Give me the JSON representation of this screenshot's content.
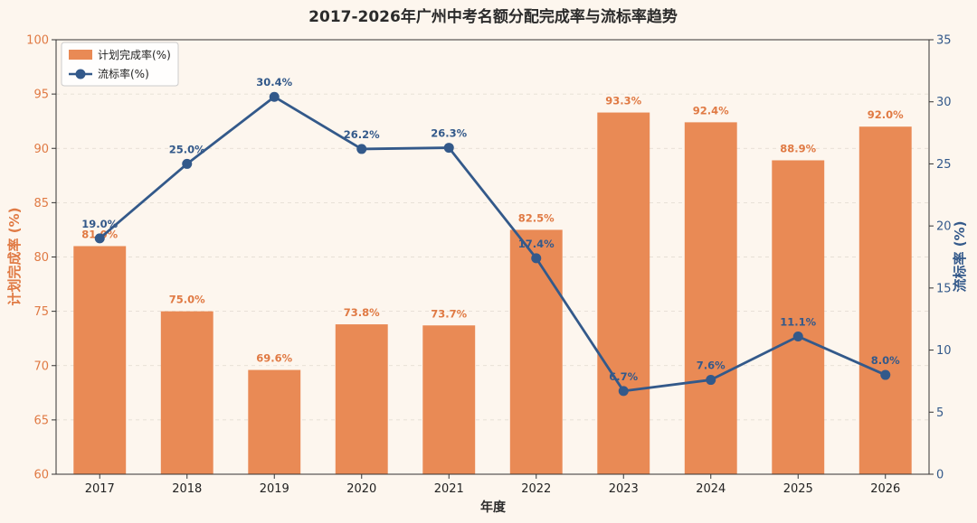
{
  "chart_data": {
    "type": "bar+line",
    "title": "2017-2026年广州中考名额分配完成率与流标率趋势",
    "xlabel": "年度",
    "ylabel_left": "计划完成率 (%)",
    "ylabel_right": "流标率 (%)",
    "categories": [
      "2017",
      "2018",
      "2019",
      "2020",
      "2021",
      "2022",
      "2023",
      "2024",
      "2025",
      "2026"
    ],
    "ylim_left": [
      60,
      100
    ],
    "yticks_left": [
      "60",
      "65",
      "70",
      "75",
      "80",
      "85",
      "90",
      "95",
      "100"
    ],
    "ylim_right": [
      0,
      35
    ],
    "yticks_right": [
      "0",
      "5",
      "10",
      "15",
      "20",
      "25",
      "30",
      "35"
    ],
    "grid": "horizontal dashed",
    "legend_position": "top-left",
    "series": [
      {
        "name": "计划完成率(%)",
        "kind": "bar",
        "axis": "left",
        "color": "#e98a55",
        "values": [
          81.0,
          75.0,
          69.6,
          73.8,
          73.7,
          82.5,
          93.3,
          92.4,
          88.9,
          92.0
        ],
        "labels": [
          "81.0%",
          "75.0%",
          "69.6%",
          "73.8%",
          "73.7%",
          "82.5%",
          "93.3%",
          "92.4%",
          "88.9%",
          "92.0%"
        ]
      },
      {
        "name": "流标率(%)",
        "kind": "line",
        "axis": "right",
        "color": "#33598a",
        "values": [
          19.0,
          25.0,
          30.4,
          26.2,
          26.3,
          17.4,
          6.7,
          7.6,
          11.1,
          8.0
        ],
        "labels": [
          "19.0%",
          "25.0%",
          "30.4%",
          "26.2%",
          "26.3%",
          "17.4%",
          "6.7%",
          "7.6%",
          "11.1%",
          "8.0%"
        ]
      }
    ]
  }
}
